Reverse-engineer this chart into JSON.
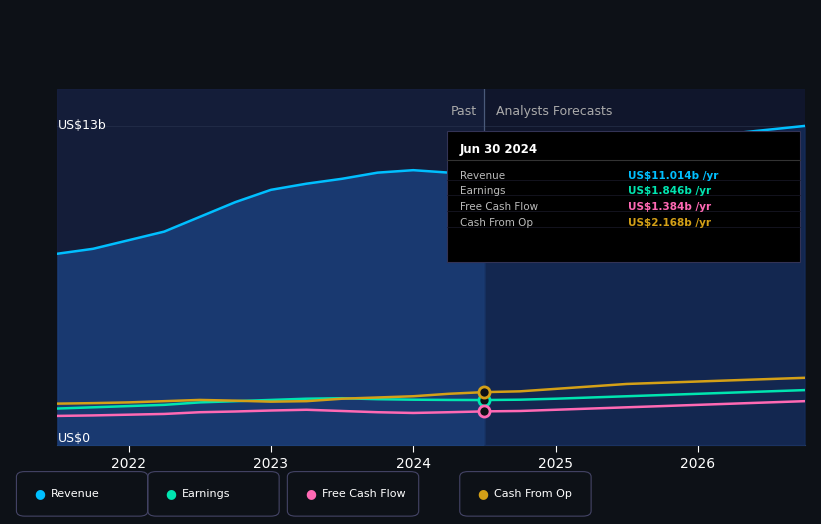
{
  "bg_color": "#0d1117",
  "revenue_color": "#00bfff",
  "earnings_color": "#00e5b0",
  "fcf_color": "#ff69b4",
  "cashop_color": "#d4a017",
  "past_end_x": 2024.5,
  "revenue_past_x": [
    2021.5,
    2021.75,
    2022.0,
    2022.25,
    2022.5,
    2022.75,
    2023.0,
    2023.25,
    2023.5,
    2023.75,
    2024.0,
    2024.25,
    2024.5
  ],
  "revenue_past_y": [
    7.8,
    8.0,
    8.35,
    8.7,
    9.3,
    9.9,
    10.4,
    10.65,
    10.85,
    11.1,
    11.2,
    11.1,
    11.014
  ],
  "revenue_forecast_x": [
    2024.5,
    2024.75,
    2025.0,
    2025.25,
    2025.5,
    2025.75,
    2026.0,
    2026.25,
    2026.5,
    2026.75
  ],
  "revenue_forecast_y": [
    11.014,
    11.1,
    11.4,
    11.7,
    12.0,
    12.3,
    12.5,
    12.7,
    12.85,
    13.0
  ],
  "earnings_past_x": [
    2021.5,
    2021.75,
    2022.0,
    2022.25,
    2022.5,
    2022.75,
    2023.0,
    2023.25,
    2023.5,
    2023.75,
    2024.0,
    2024.25,
    2024.5
  ],
  "earnings_past_y": [
    1.5,
    1.55,
    1.6,
    1.65,
    1.75,
    1.8,
    1.85,
    1.9,
    1.92,
    1.88,
    1.86,
    1.85,
    1.846
  ],
  "earnings_forecast_x": [
    2024.5,
    2024.75,
    2025.0,
    2025.25,
    2025.5,
    2025.75,
    2026.0,
    2026.25,
    2026.5,
    2026.75
  ],
  "earnings_forecast_y": [
    1.846,
    1.86,
    1.9,
    1.95,
    2.0,
    2.05,
    2.1,
    2.15,
    2.2,
    2.25
  ],
  "fcf_past_x": [
    2021.5,
    2021.75,
    2022.0,
    2022.25,
    2022.5,
    2022.75,
    2023.0,
    2023.25,
    2023.5,
    2023.75,
    2024.0,
    2024.25,
    2024.5
  ],
  "fcf_past_y": [
    1.2,
    1.22,
    1.25,
    1.28,
    1.35,
    1.38,
    1.42,
    1.45,
    1.4,
    1.35,
    1.32,
    1.35,
    1.384
  ],
  "fcf_forecast_x": [
    2024.5,
    2024.75,
    2025.0,
    2025.25,
    2025.5,
    2025.75,
    2026.0,
    2026.25,
    2026.5,
    2026.75
  ],
  "fcf_forecast_y": [
    1.384,
    1.4,
    1.45,
    1.5,
    1.55,
    1.6,
    1.65,
    1.7,
    1.75,
    1.8
  ],
  "cashop_past_x": [
    2021.5,
    2021.75,
    2022.0,
    2022.25,
    2022.5,
    2022.75,
    2023.0,
    2023.25,
    2023.5,
    2023.75,
    2024.0,
    2024.25,
    2024.5
  ],
  "cashop_past_y": [
    1.7,
    1.72,
    1.75,
    1.8,
    1.85,
    1.82,
    1.78,
    1.8,
    1.9,
    1.95,
    2.0,
    2.1,
    2.168
  ],
  "cashop_forecast_x": [
    2024.5,
    2024.75,
    2025.0,
    2025.25,
    2025.5,
    2025.75,
    2026.0,
    2026.25,
    2026.5,
    2026.75
  ],
  "cashop_forecast_y": [
    2.168,
    2.2,
    2.3,
    2.4,
    2.5,
    2.55,
    2.6,
    2.65,
    2.7,
    2.75
  ],
  "xlim": [
    2021.5,
    2026.75
  ],
  "ylim": [
    0,
    14.5
  ],
  "tooltip_title": "Jun 30 2024",
  "tooltip_rows": [
    {
      "label": "Revenue",
      "value": "US$11.014b /yr",
      "color": "#00bfff"
    },
    {
      "label": "Earnings",
      "value": "US$1.846b /yr",
      "color": "#00e5b0"
    },
    {
      "label": "Free Cash Flow",
      "value": "US$1.384b /yr",
      "color": "#ff69b4"
    },
    {
      "label": "Cash From Op",
      "value": "US$2.168b /yr",
      "color": "#d4a017"
    }
  ],
  "xticks": [
    2022.0,
    2023.0,
    2024.0,
    2025.0,
    2026.0
  ],
  "xtick_labels": [
    "2022",
    "2023",
    "2024",
    "2025",
    "2026"
  ],
  "y_label_text": "US$13b",
  "y_zero_text": "US$0",
  "past_label": "Past",
  "forecast_label": "Analysts Forecasts",
  "legend_items": [
    {
      "label": "Revenue",
      "color": "#00bfff"
    },
    {
      "label": "Earnings",
      "color": "#00e5b0"
    },
    {
      "label": "Free Cash Flow",
      "color": "#ff69b4"
    },
    {
      "label": "Cash From Op",
      "color": "#d4a017"
    }
  ]
}
